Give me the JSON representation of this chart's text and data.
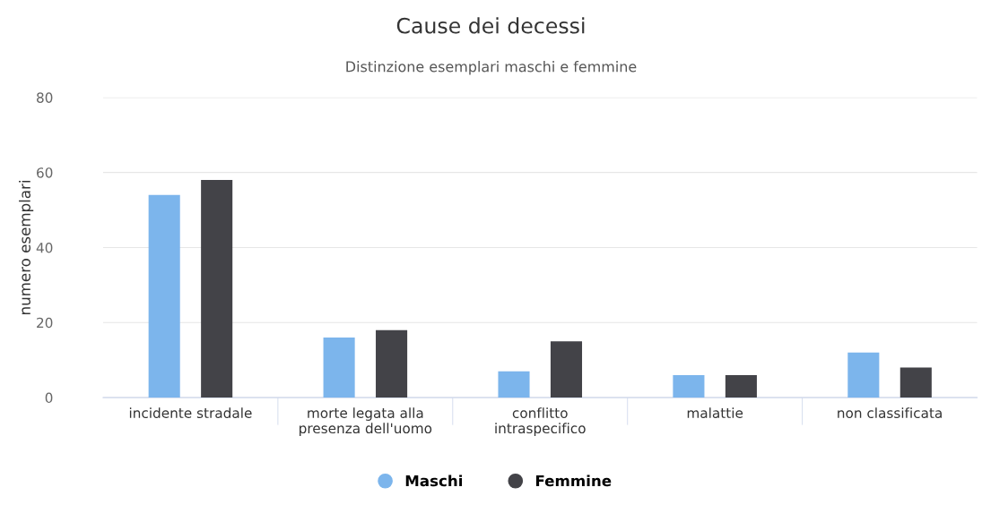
{
  "chart_data": {
    "type": "bar",
    "title": "Cause dei decessi",
    "subtitle": "Distinzione esemplari maschi e femmine",
    "ylabel": "numero esemplari",
    "categories": [
      "incidente stradale",
      "morte legata alla\npresenza dell'uomo",
      "conflitto\nintraspecifico",
      "malattie",
      "non classificata"
    ],
    "series": [
      {
        "name": "Maschi",
        "color": "#7cb5ec",
        "values": [
          54,
          16,
          7,
          6,
          12
        ]
      },
      {
        "name": "Femmine",
        "color": "#434348",
        "values": [
          58,
          18,
          15,
          6,
          8
        ]
      }
    ],
    "ylim": [
      0,
      80
    ],
    "yticks": [
      0,
      20,
      40,
      60,
      80
    ],
    "grid": "y",
    "legend": "bottom",
    "marker": "circle"
  }
}
